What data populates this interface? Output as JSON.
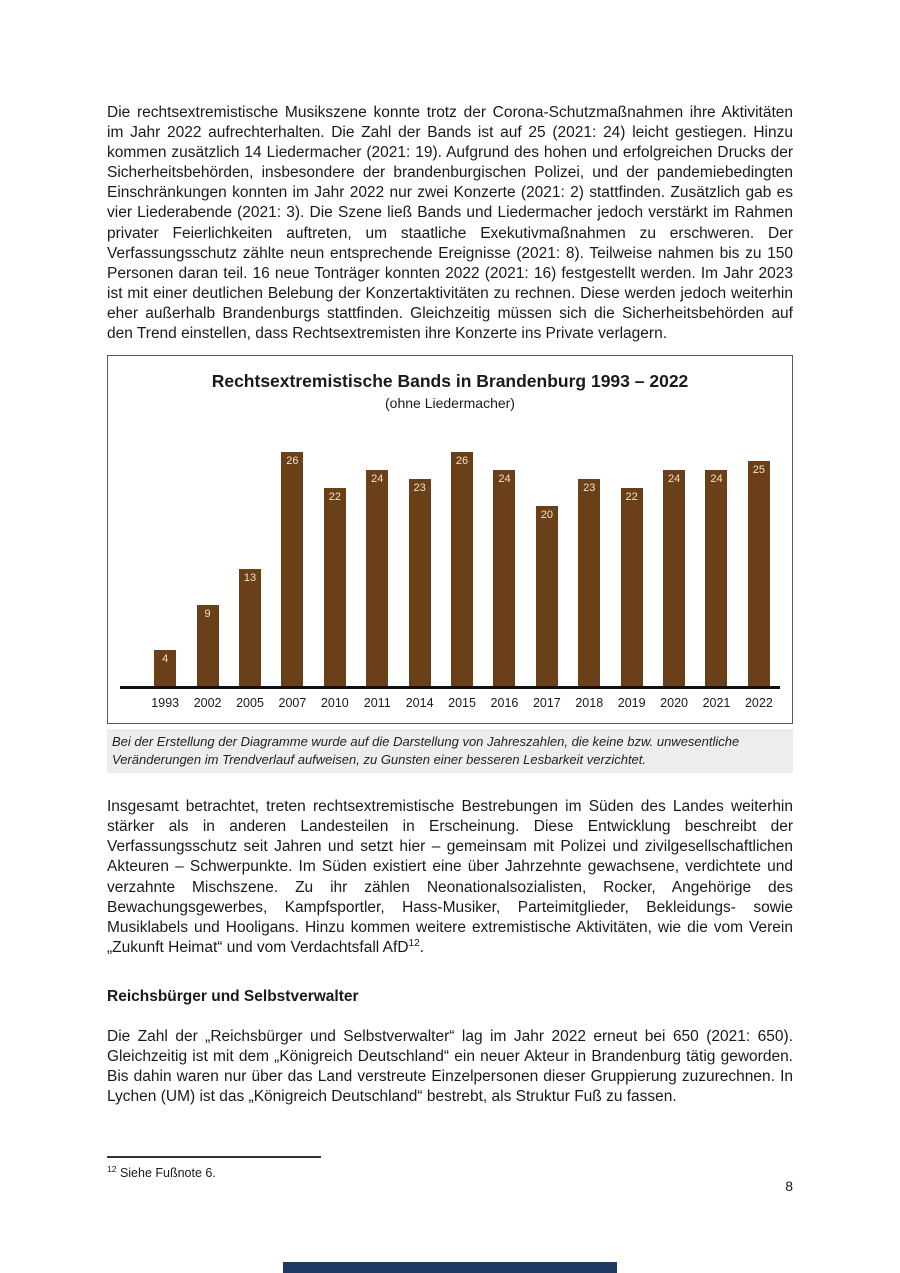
{
  "document": {
    "paragraphs": [
      {
        "text": "Die rechtsextremistische Musikszene konnte trotz der Corona-Schutzmaßnahmen ihre Aktivitäten im Jahr 2022 aufrechterhalten. Die Zahl der Bands ist auf 25 (2021: 24) leicht gestiegen. Hinzu kommen zusätzlich 14 Liedermacher (2021: 19). Aufgrund des hohen und erfolgreichen Drucks der Sicherheitsbehörden, insbesondere der brandenburgischen Polizei, und der pandemiebedingten Einschränkungen konnten im Jahr 2022 nur zwei Konzerte (2021: 2) stattfinden. Zusätzlich gab es vier Liederabende (2021: 3). Die Szene ließ Bands und Liedermacher jedoch verstärkt im Rahmen privater Feierlichkeiten auftreten, um staatliche Exekutivmaßnahmen zu erschweren. Der Verfassungsschutz zählte neun entsprechende Ereignisse (2021: 8). Teilweise nahmen bis zu 150 Personen daran teil. 16 neue Tonträger konnten 2022 (2021: 16) festgestellt werden. Im Jahr 2023 ist mit einer deutlichen Belebung der Konzertaktivitäten zu rechnen. Diese werden jedoch weiterhin eher außerhalb Brandenburgs stattfinden. Gleichzeitig müssen sich die Sicherheitsbehörden auf den Trend einstellen, dass Rechtsextremisten ihre Konzerte ins Private verlagern."
      },
      {
        "text": "Insgesamt betrachtet, treten rechtsextremistische Bestrebungen im Süden des Landes weiterhin stärker als in anderen Landesteilen in Erscheinung. Diese Entwicklung beschreibt der Verfassungsschutz seit Jahren und setzt hier – gemeinsam mit Polizei und zivilgesellschaftlichen Akteuren – Schwerpunkte. Im Süden existiert eine über Jahrzehnte gewachsene, verdichtete und verzahnte Mischszene. Zu ihr zählen Neonationalsozialisten, Rocker, Angehörige des Bewachungsgewerbes, Kampfsportler, Hass-Musiker, Parteimitglieder, Bekleidungs- sowie Musiklabels und Hooligans. Hinzu kommen weitere extremistische Aktivitäten, wie die vom Verein „Zukunft Heimat“ und vom Verdachtsfall AfD",
        "sup": "12",
        "tail": "."
      },
      {
        "text": "Die Zahl der „Reichsbürger und Selbstverwalter“ lag im Jahr 2022 erneut bei 650 (2021: 650). Gleichzeitig ist mit dem „Königreich Deutschland“ ein neuer Akteur in Brandenburg tätig geworden. Bis dahin waren nur über das Land verstreute Einzelpersonen dieser Gruppierung zuzurechnen. In Lychen (UM) ist das „Königreich Deutschland“ bestrebt, als Struktur Fuß zu fassen."
      }
    ],
    "heading": "Reichsbürger und Selbstverwalter",
    "chart_caption": "Bei der Erstellung der Diagramme wurde auf die Darstellung von Jahreszahlen, die keine bzw. unwesentliche Veränderungen im Trendverlauf aufweisen, zu Gunsten einer besseren Lesbarkeit verzichtet.",
    "footnote": {
      "sup": "12",
      "text": " Siehe Fußnote 6."
    },
    "page_number": "8"
  },
  "chart_data": {
    "type": "bar",
    "title": "Rechtsextremistische Bands in Brandenburg 1993 – 2022",
    "subtitle": "(ohne Liedermacher)",
    "categories": [
      "1993",
      "2002",
      "2005",
      "2007",
      "2010",
      "2011",
      "2014",
      "2015",
      "2016",
      "2017",
      "2018",
      "2019",
      "2020",
      "2021",
      "2022"
    ],
    "values": [
      4,
      9,
      13,
      26,
      22,
      24,
      23,
      26,
      24,
      20,
      23,
      22,
      24,
      24,
      25
    ],
    "xlabel": "",
    "ylabel": "",
    "ylim": [
      0,
      26
    ],
    "grid": false,
    "legend": "none",
    "value_labels": "inside-top"
  },
  "colors": {
    "bar": "#6b4018",
    "bar_value_label": "#f0e2cb",
    "axis_line": "#111111",
    "chart_border": "#595959",
    "caption_background": "#ededed",
    "bottom_bar": "#1f3864"
  }
}
